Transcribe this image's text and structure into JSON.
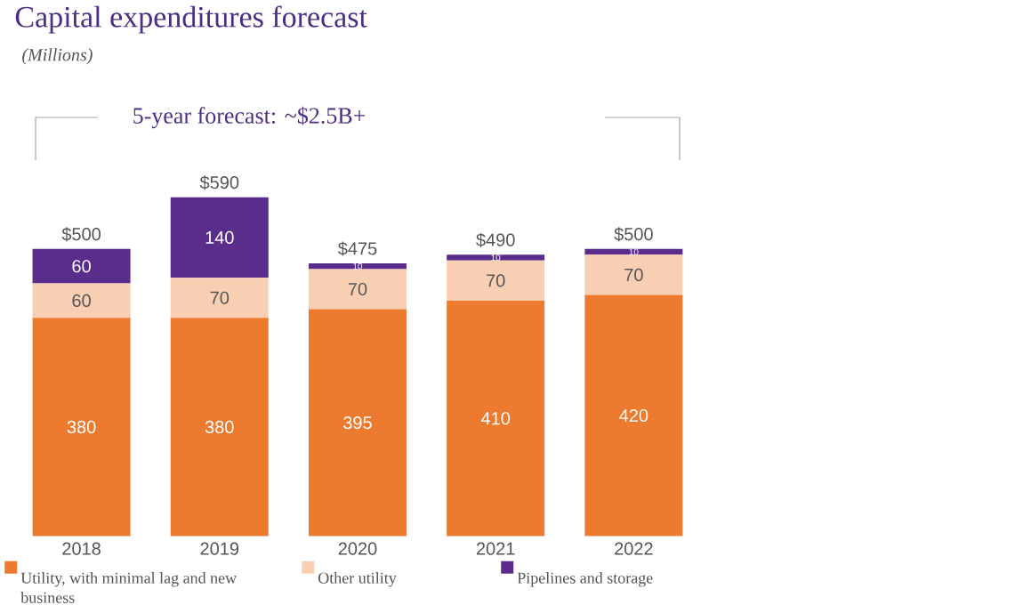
{
  "chart_data": {
    "type": "bar",
    "stacked": true,
    "title": "Capital expenditures forecast",
    "subtitle": "(Millions)",
    "annotations": [
      "5-year forecast: ~$2.5B+"
    ],
    "categories": [
      "2018",
      "2019",
      "2020",
      "2021",
      "2022"
    ],
    "series": [
      {
        "name": "Utility, with minimal lag and new business",
        "color": "#ec7a2f",
        "values": [
          380,
          380,
          395,
          410,
          420
        ]
      },
      {
        "name": "Other utility",
        "color": "#f9cfb3",
        "values": [
          60,
          70,
          70,
          70,
          70
        ]
      },
      {
        "name": "Pipelines and storage",
        "color": "#5a2d8c",
        "values": [
          60,
          140,
          10,
          10,
          10
        ]
      }
    ],
    "totals": [
      "$500",
      "$590",
      "$475",
      "$490",
      "$500"
    ],
    "data_labels": true,
    "tick_labels": "x",
    "legend": "bottom"
  }
}
